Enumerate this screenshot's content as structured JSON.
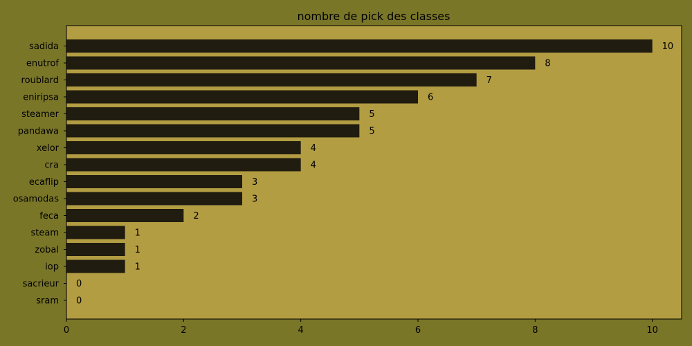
{
  "colors": {
    "figure_background": "#7a7628",
    "plot_background": "#b39d42",
    "bar": "#201c10",
    "text": "#000000"
  },
  "chart_data": {
    "type": "bar",
    "orientation": "horizontal",
    "title": "nombre de pick des classes",
    "xlabel": "",
    "ylabel": "",
    "categories": [
      "sadida",
      "enutrof",
      "roublard",
      "eniripsa",
      "steamer",
      "pandawa",
      "xelor",
      "cra",
      "ecaflip",
      "osamodas",
      "feca",
      "steam",
      "zobal",
      "iop",
      "sacrieur",
      "sram"
    ],
    "values": [
      10,
      8,
      7,
      6,
      5,
      5,
      4,
      4,
      3,
      3,
      2,
      1,
      1,
      1,
      0,
      0
    ],
    "value_labels": [
      "10",
      "8",
      "7",
      "6",
      "5",
      "5",
      "4",
      "4",
      "3",
      "3",
      "2",
      "1",
      "1",
      "1",
      "0",
      "0"
    ],
    "xlim": [
      0,
      10.5
    ],
    "xticks": [
      0,
      2,
      4,
      6,
      8,
      10
    ],
    "xtick_labels": [
      "0",
      "2",
      "4",
      "6",
      "8",
      "10"
    ],
    "grid": false,
    "legend": "none"
  }
}
